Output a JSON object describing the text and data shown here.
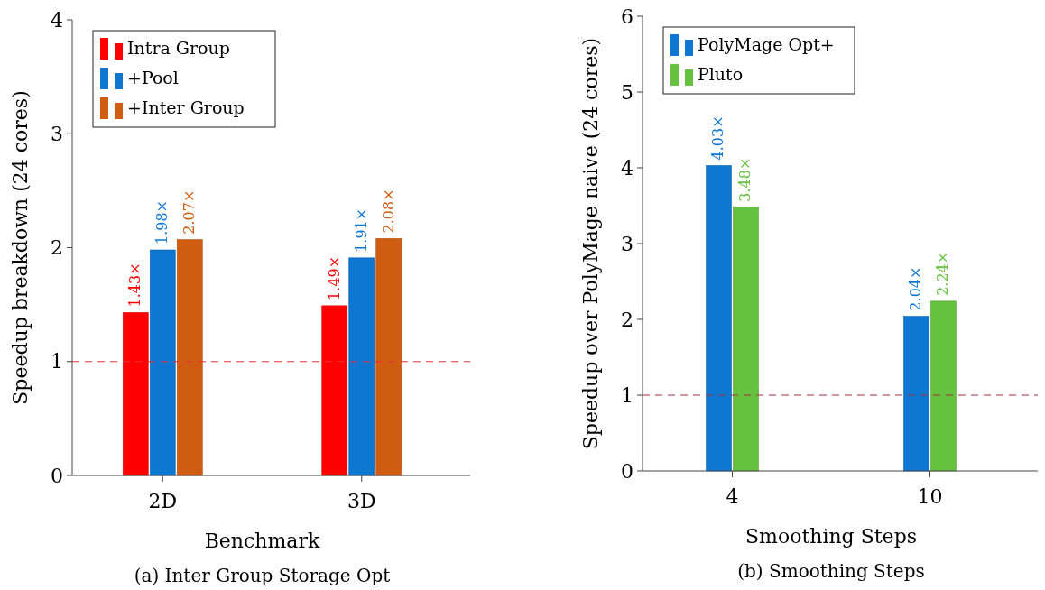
{
  "chart_data": [
    {
      "type": "bar",
      "title": "(a) Inter Group Storage Opt",
      "xlabel": "Benchmark",
      "ylabel": "Speedup breakdown (24 cores)",
      "categories": [
        "2D",
        "3D"
      ],
      "series": [
        {
          "name": "Intra Group",
          "color": "#ff0000",
          "values": [
            1.43,
            1.49
          ],
          "value_labels": [
            "1.43×",
            "1.49×"
          ]
        },
        {
          "name": "+Pool",
          "color": "#0d77d1",
          "values": [
            1.98,
            1.91
          ],
          "value_labels": [
            "1.98×",
            "1.91×"
          ]
        },
        {
          "name": "+Inter Group",
          "color": "#cf5c10",
          "values": [
            2.07,
            2.08
          ],
          "value_labels": [
            "2.07×",
            "2.08×"
          ]
        }
      ],
      "ylim": [
        0,
        4
      ],
      "yticks": [
        0,
        1,
        2,
        3,
        4
      ],
      "grid": false,
      "legend": "top left",
      "ref_lines": [
        {
          "axis": "y",
          "value": 1,
          "color": "#e8303a",
          "line_style": "dashed"
        }
      ]
    },
    {
      "type": "bar",
      "title": "(b) Smoothing Steps",
      "xlabel": "Smoothing Steps",
      "ylabel": "Speedup over PolyMage naive (24 cores)",
      "categories": [
        "4",
        "10"
      ],
      "series": [
        {
          "name": "PolyMage Opt+",
          "color": "#0d77d1",
          "values": [
            4.03,
            2.04
          ],
          "value_labels": [
            "4.03×",
            "2.04×"
          ]
        },
        {
          "name": "Pluto",
          "color": "#66c23e",
          "values": [
            3.48,
            2.24
          ],
          "value_labels": [
            "3.48×",
            "2.24×"
          ]
        }
      ],
      "ylim": [
        0,
        6
      ],
      "yticks": [
        0,
        1,
        2,
        3,
        4,
        5,
        6
      ],
      "grid": false,
      "legend": "top left",
      "ref_lines": [
        {
          "axis": "y",
          "value": 1,
          "color": "#a0303a",
          "line_style": "dashed"
        }
      ]
    }
  ]
}
